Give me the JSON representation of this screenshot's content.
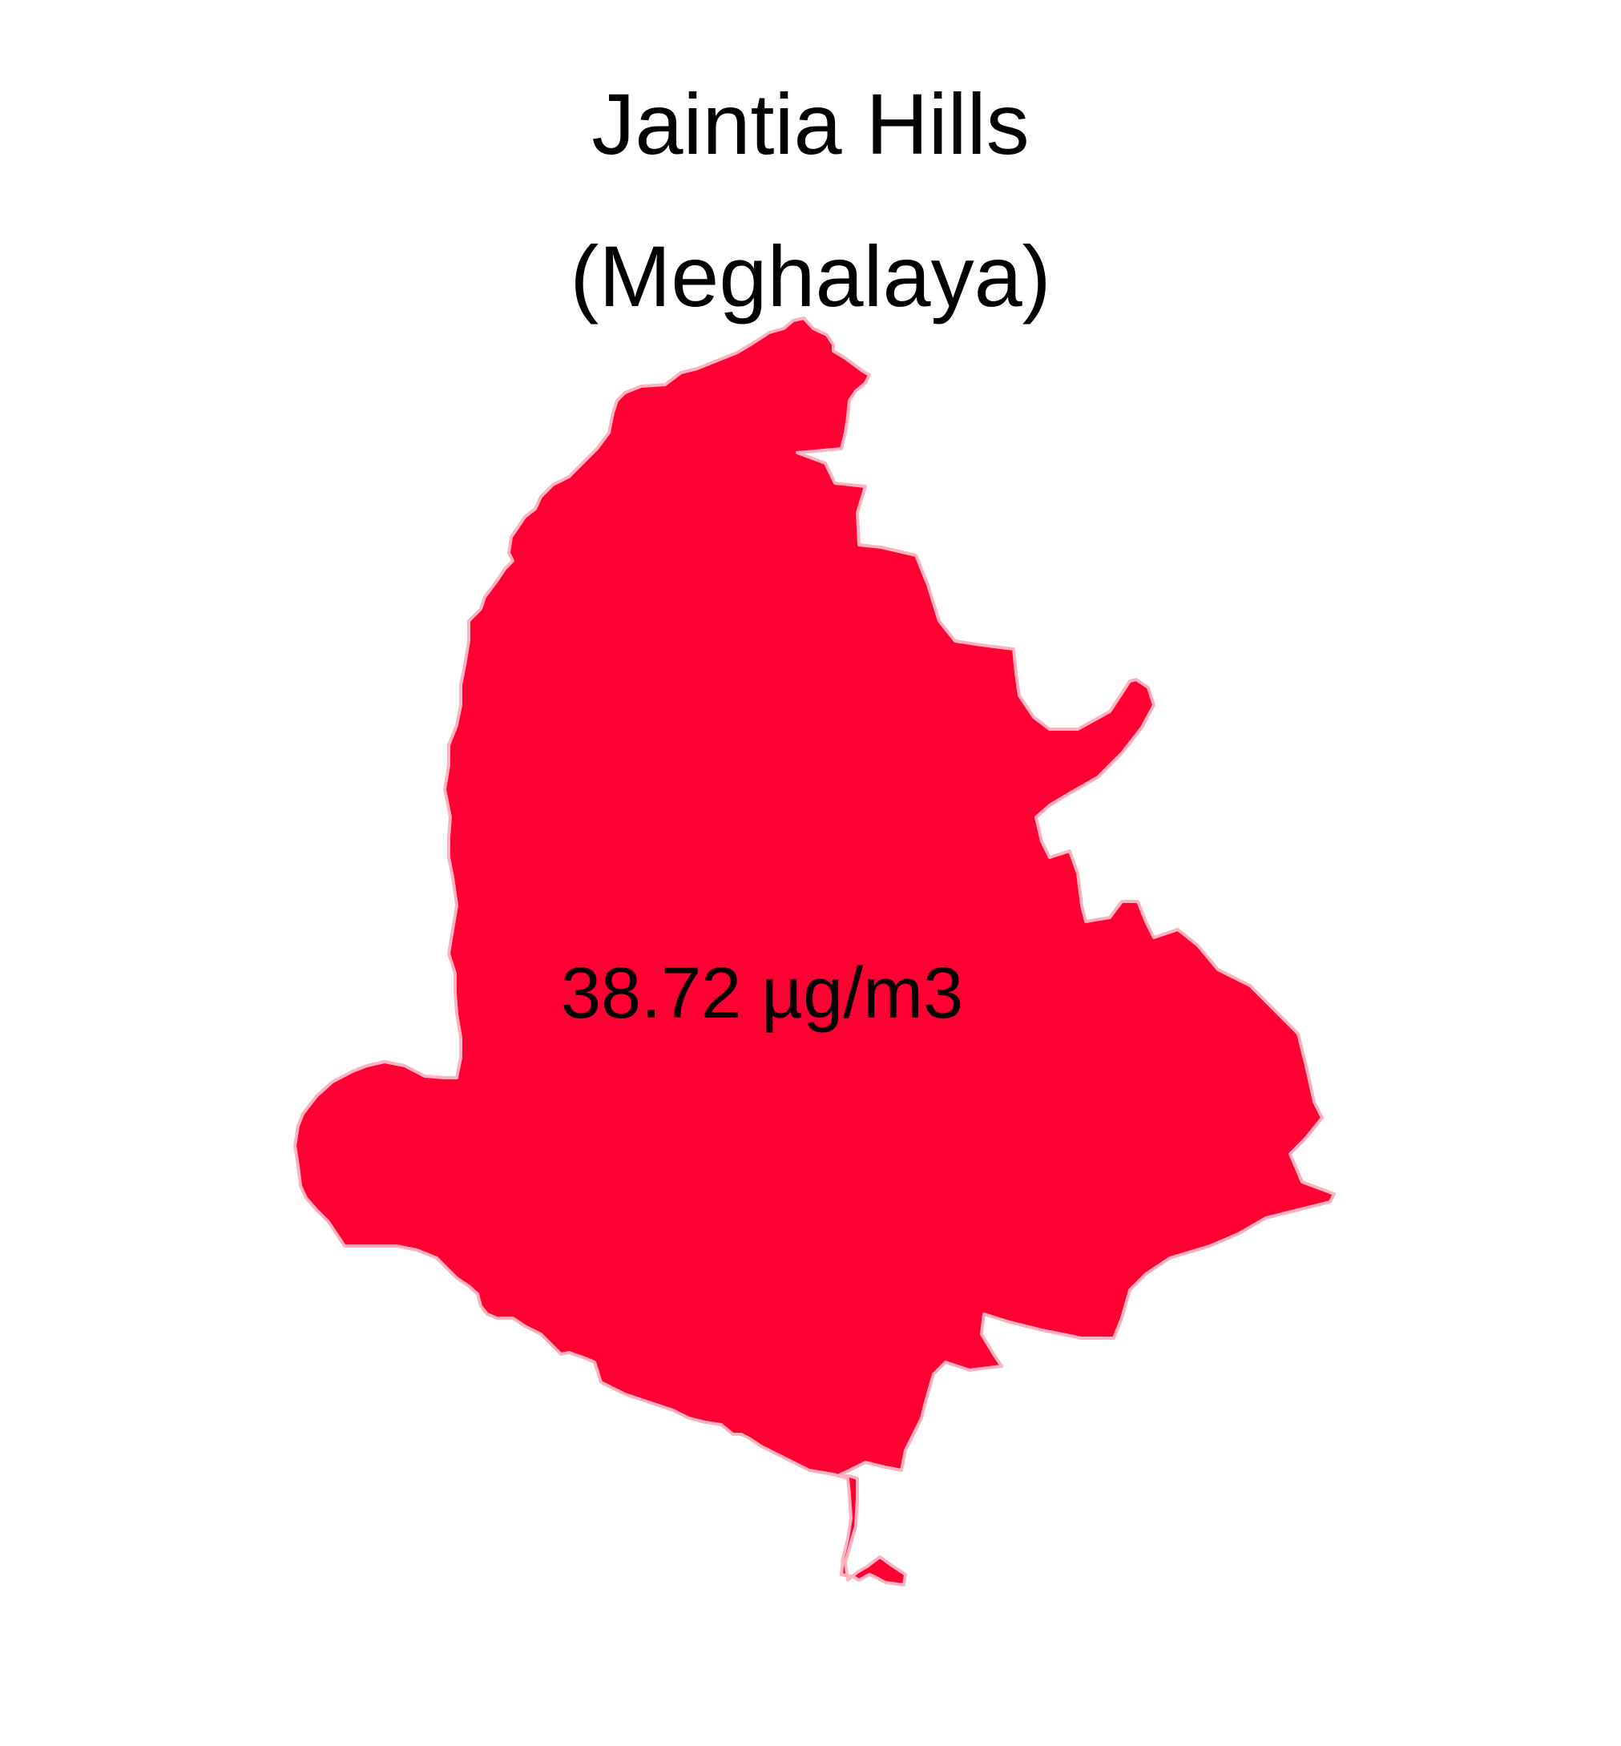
{
  "map": {
    "title_line1": "Jaintia Hills",
    "title_line2": "(Meghalaya)",
    "region_name": "Jaintia Hills",
    "state_name": "Meghalaya",
    "value_label": "38.72 µg/m3",
    "fill_color": "#FF0033",
    "border_color": "#FFB3C1"
  }
}
